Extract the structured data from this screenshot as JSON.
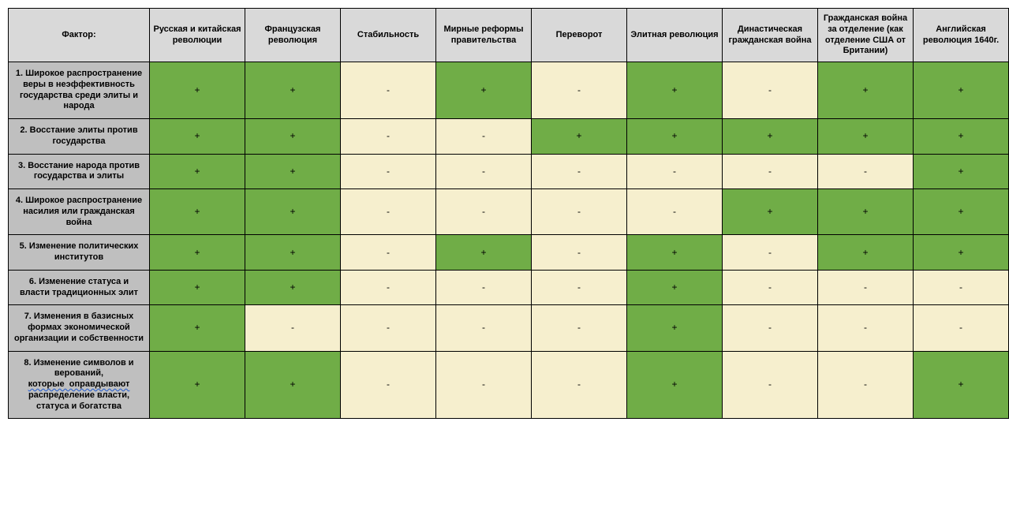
{
  "table": {
    "type": "table",
    "colors": {
      "header_bg": "#d9d9d9",
      "row_label_bg": "#bfbfbf",
      "positive_bg": "#70ad47",
      "negative_bg": "#f6efce",
      "border": "#000000",
      "text": "#000000",
      "underline_color": "#3366cc"
    },
    "typography": {
      "font_family": "Arial",
      "header_fontsize": 11,
      "cell_fontsize": 12,
      "row_label_fontsize": 11,
      "header_weight": "bold",
      "row_label_weight": "bold"
    },
    "columns": [
      "Фактор:",
      "Русская и китайская революции",
      "Французская революция",
      "Стабильность",
      "Мирные реформы правительства",
      "Переворот",
      "Элитная революция",
      "Династическая гражданская война",
      "Гражданская война за отделение (как отделение США от Британии)",
      "Английская революция 1640г."
    ],
    "rows": [
      {
        "label_plain": "1. Широкое распространение веры в неэффективность государства среди элиты и народа",
        "label_html": "1. Широкое распространение веры в неэффективность государства среди элиты и народа",
        "values": [
          "+",
          "+",
          "-",
          "+",
          "-",
          "+",
          "-",
          "+",
          "+"
        ]
      },
      {
        "label_plain": "2. Восстание элиты против государства",
        "label_html": "2. Восстание элиты против государства",
        "values": [
          "+",
          "+",
          "-",
          "-",
          "+",
          "+",
          "+",
          "+",
          "+"
        ]
      },
      {
        "label_plain": "3. Восстание народа против государства и элиты",
        "label_html": "3. Восстание народа против государства и элиты",
        "values": [
          "+",
          "+",
          "-",
          "-",
          "-",
          "-",
          "-",
          "-",
          "+"
        ]
      },
      {
        "label_plain": "4. Широкое распространение насилия или гражданская война",
        "label_html": "4. Широкое распространение насилия или гражданская война",
        "values": [
          "+",
          "+",
          "-",
          "-",
          "-",
          "-",
          "+",
          "+",
          "+"
        ]
      },
      {
        "label_plain": "5. Изменение политических институтов",
        "label_html": "5. Изменение политических институтов",
        "values": [
          "+",
          "+",
          "-",
          "+",
          "-",
          "+",
          "-",
          "+",
          "+"
        ]
      },
      {
        "label_plain": "6. Изменение статуса и власти традиционных элит",
        "label_html": "6. Изменение статуса и власти традиционных элит",
        "values": [
          "+",
          "+",
          "-",
          "-",
          "-",
          "+",
          "-",
          "-",
          "-"
        ]
      },
      {
        "label_plain": "7. Изменения в базисных формах экономической организации и собственности",
        "label_html": "7. Изменения в базисных формах экономической организации и собственности",
        "values": [
          "+",
          "-",
          "-",
          "-",
          "-",
          "+",
          "-",
          "-",
          "-"
        ]
      },
      {
        "label_plain": "8. Изменение символов и верований, которые оправдывают распределение власти, статуса и богатства",
        "label_html": "8. Изменение символов и верований, <span class=\"underline-wavy\">которые&nbsp;&nbsp;оправдывают</span> распределение власти, статуса и богатства",
        "values": [
          "+",
          "+",
          "-",
          "-",
          "-",
          "+",
          "-",
          "-",
          "+"
        ]
      }
    ]
  }
}
